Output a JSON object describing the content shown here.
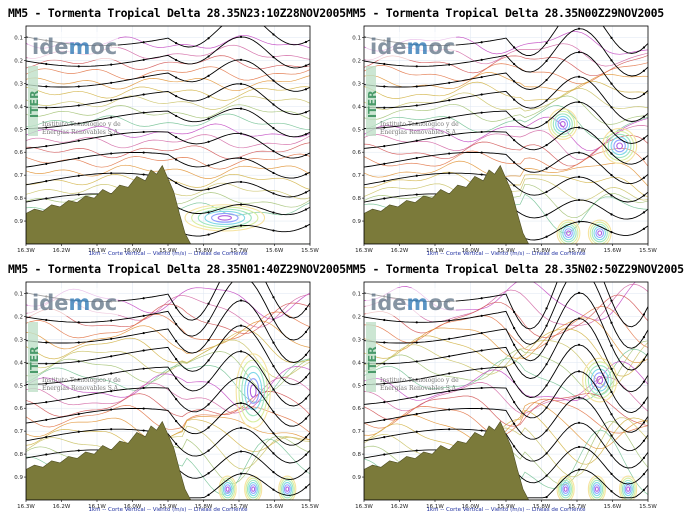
{
  "panels": [
    {
      "title": "MM5 - Tormenta Tropical Delta 28.35N23:10Z28NOV2005"
    },
    {
      "title": "MM5 - Tormenta Tropical Delta 28.35N00Z29NOV2005"
    },
    {
      "title": "MM5 - Tormenta Tropical Delta 28.35N01:40Z29NOV2005"
    },
    {
      "title": "MM5 - Tormenta Tropical Delta 28.35N02:50Z29NOV2005"
    }
  ],
  "axes": {
    "y_ticks": [
      "0.1",
      "0.2",
      "0.3",
      "0.4",
      "0.5",
      "0.6",
      "0.7",
      "0.8",
      "0.9"
    ],
    "x_ticks": [
      "16.3W",
      "16.2W",
      "16.1W",
      "16.0W",
      "15.9W",
      "15.8W",
      "15.7W",
      "15.6W",
      "15.5W"
    ]
  },
  "footer": "1km -- Corte Vertical -- Viento (m/s) -- Lineas de Corriente",
  "logo": {
    "brand_a": "ide",
    "brand_b": "m",
    "brand_c": "oc",
    "vertical": "ITER",
    "institute_1": "Instituto Tecnológico y de",
    "institute_2": "Energías Renovables S.A."
  },
  "colors": {
    "terrain": "#7b7a3a",
    "streamline": "#000000",
    "isotach_low": "#d05050",
    "isotach_high": "#c040c0",
    "wind_core": "#4060ff"
  }
}
